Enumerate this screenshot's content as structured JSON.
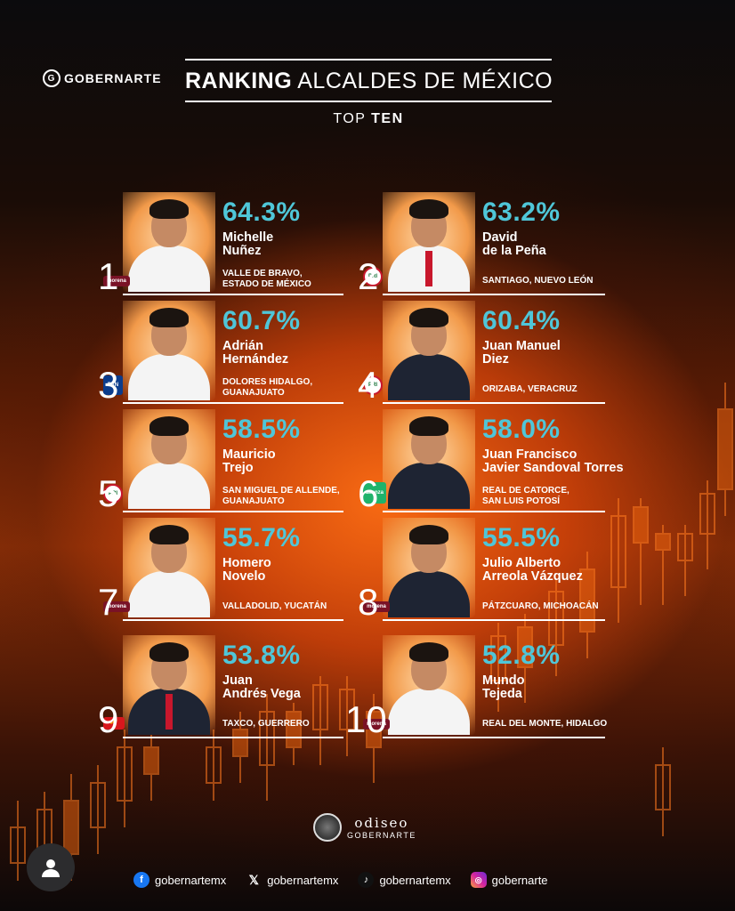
{
  "header": {
    "brand": "GOBERNARTE",
    "title_bold": "RANKING",
    "title_rest": " ALCALDES DE MÉXICO",
    "subtitle_pre": "TOP ",
    "subtitle_bold": "TEN"
  },
  "ranking": [
    {
      "rank": "1",
      "percent": "64.3%",
      "name_line1": "Michelle",
      "name_line2": "Nuñez",
      "location_line1": "VALLE DE BRAVO,",
      "location_line2": "ESTADO DE MÉXICO",
      "party": "morena",
      "party_label": "morena"
    },
    {
      "rank": "2",
      "percent": "63.2%",
      "name_line1": "David",
      "name_line2": "de la Peña",
      "location_line1": "SANTIAGO, NUEVO LEÓN",
      "location_line2": "",
      "party": "pri",
      "party_label": "PRI"
    },
    {
      "rank": "3",
      "percent": "60.7%",
      "name_line1": "Adrián",
      "name_line2": "Hernández",
      "location_line1": "DOLORES HIDALGO,",
      "location_line2": "GUANAJUATO",
      "party": "pan",
      "party_label": "PAN"
    },
    {
      "rank": "4",
      "percent": "60.4%",
      "name_line1": "Juan Manuel",
      "name_line2": "Diez",
      "location_line1": "ORIZABA, VERACRUZ",
      "location_line2": "",
      "party": "pri",
      "party_label": "PRI"
    },
    {
      "rank": "5",
      "percent": "58.5%",
      "name_line1": "Mauricio",
      "name_line2": "Trejo",
      "location_line1": "SAN MIGUEL DE ALLENDE,",
      "location_line2": "GUANAJUATO",
      "party": "pri",
      "party_label": "PRI"
    },
    {
      "rank": "6",
      "percent": "58.0%",
      "name_line1": "Juan Francisco",
      "name_line2": "Javier Sandoval Torres",
      "location_line1": "REAL DE CATORCE,",
      "location_line2": "SAN LUIS POTOSÍ",
      "party": "mc",
      "party_label": "alianza"
    },
    {
      "rank": "7",
      "percent": "55.7%",
      "name_line1": "Homero",
      "name_line2": "Novelo",
      "location_line1": "VALLADOLID, YUCATÁN",
      "location_line2": "",
      "party": "morena",
      "party_label": "morena"
    },
    {
      "rank": "8",
      "percent": "55.5%",
      "name_line1": "Julio Alberto",
      "name_line2": "Arreola Vázquez",
      "location_line1": "PÁTZCUARO, MICHOACÁN",
      "location_line2": "",
      "party": "morena",
      "party_label": "morena"
    },
    {
      "rank": "9",
      "percent": "53.8%",
      "name_line1": "Juan",
      "name_line2": "Andrés Vega",
      "location_line1": "TAXCO, GUERRERO",
      "location_line2": "",
      "party": "pt",
      "party_label": "PT"
    },
    {
      "rank": "10",
      "percent": "52.8%",
      "name_line1": "Mundo",
      "name_line2": "Tejeda",
      "location_line1": "REAL DEL MONTE, HIDALGO",
      "location_line2": "",
      "party": "morena",
      "party_label": "morena"
    }
  ],
  "footer_brand": {
    "line1": "odiseo",
    "line2": "GOBERNARTE"
  },
  "socials": [
    {
      "icon": "facebook-icon",
      "handle": "gobernartemx"
    },
    {
      "icon": "x-icon",
      "handle": "gobernartemx"
    },
    {
      "icon": "tiktok-icon",
      "handle": "gobernartemx"
    },
    {
      "icon": "instagram-icon",
      "handle": "gobernarte"
    }
  ],
  "colors": {
    "percent": "#4fc6d8",
    "accent_orange": "#e8620f"
  }
}
